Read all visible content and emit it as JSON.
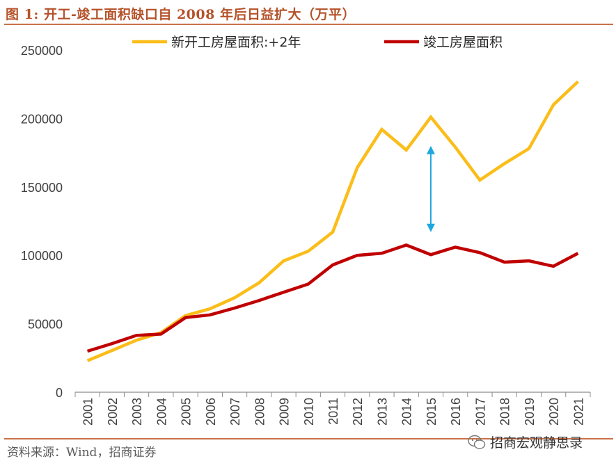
{
  "figure_title": "图 1:  开工-竣工面积缺口自 2008 年后日益扩大（万平）",
  "source_text": "资料来源：Wind，招商证券",
  "watermark_text": "招商宏观静思录",
  "colors": {
    "accent": "#b5522a",
    "series_start": "#fbbd19",
    "series_completed": "#c00000",
    "arrow": "#1fa8e0"
  },
  "chart_data": {
    "type": "line",
    "title": "开工-竣工面积缺口自 2008 年后日益扩大（万平）",
    "xlabel": "",
    "ylabel": "",
    "categories": [
      "2001",
      "2002",
      "2003",
      "2004",
      "2005",
      "2006",
      "2007",
      "2008",
      "2009",
      "2010",
      "2011",
      "2012",
      "2013",
      "2014",
      "2015",
      "2016",
      "2017",
      "2018",
      "2019",
      "2020",
      "2021"
    ],
    "ylim": [
      0,
      250000
    ],
    "yticks": [
      0,
      50000,
      100000,
      150000,
      200000,
      250000
    ],
    "ytick_labels": [
      "0",
      "50000",
      "100000",
      "150000",
      "200000",
      "250000"
    ],
    "legend_position": "top",
    "series": [
      {
        "name": "新开工房屋面积:+2年",
        "color": "#fbbd19",
        "values": [
          23000,
          30500,
          38000,
          43500,
          56000,
          61000,
          69000,
          80000,
          96000,
          103000,
          117000,
          164000,
          192000,
          177000,
          201000,
          179000,
          155000,
          167000,
          178000,
          210000,
          227000
        ]
      },
      {
        "name": "竣工房屋面积",
        "color": "#c00000",
        "values": [
          30000,
          35500,
          41500,
          42500,
          54500,
          56500,
          61500,
          67000,
          73000,
          79000,
          93000,
          100000,
          101500,
          107500,
          100500,
          106000,
          102000,
          95000,
          96000,
          92000,
          101500
        ]
      }
    ],
    "annotations": [
      {
        "type": "double-arrow",
        "x": "2015",
        "y_from": 180000,
        "y_to": 117000
      }
    ]
  }
}
